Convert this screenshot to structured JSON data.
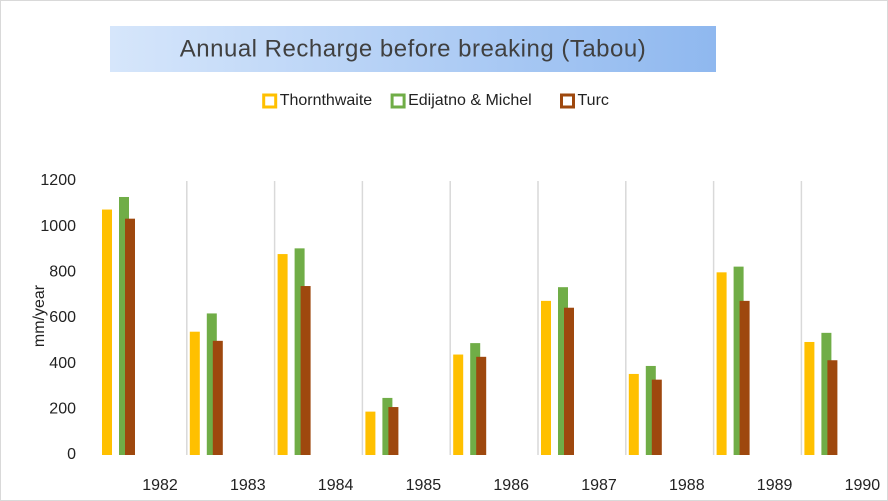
{
  "chart_data": {
    "type": "bar",
    "title": "Annual Recharge before breaking (Tabou)",
    "ylabel": "mm/year",
    "categories": [
      "1982",
      "1983",
      "1984",
      "1985",
      "1986",
      "1987",
      "1988",
      "1989",
      "1990"
    ],
    "series": [
      {
        "name": "Thornthwaite",
        "color": "#ffc000",
        "values": [
          1075,
          540,
          880,
          190,
          440,
          675,
          355,
          800,
          495
        ]
      },
      {
        "name": "Edijatno & Michel",
        "color": "#70ad47",
        "values": [
          1130,
          620,
          905,
          250,
          490,
          735,
          390,
          825,
          535
        ]
      },
      {
        "name": "Turc",
        "color": "#9e480e",
        "values": [
          1035,
          500,
          740,
          210,
          430,
          645,
          330,
          675,
          415
        ]
      }
    ],
    "ylim": [
      0,
      1200
    ],
    "yticks": [
      0,
      200,
      400,
      600,
      800,
      1000,
      1200
    ],
    "grid": true,
    "legend": "top"
  }
}
